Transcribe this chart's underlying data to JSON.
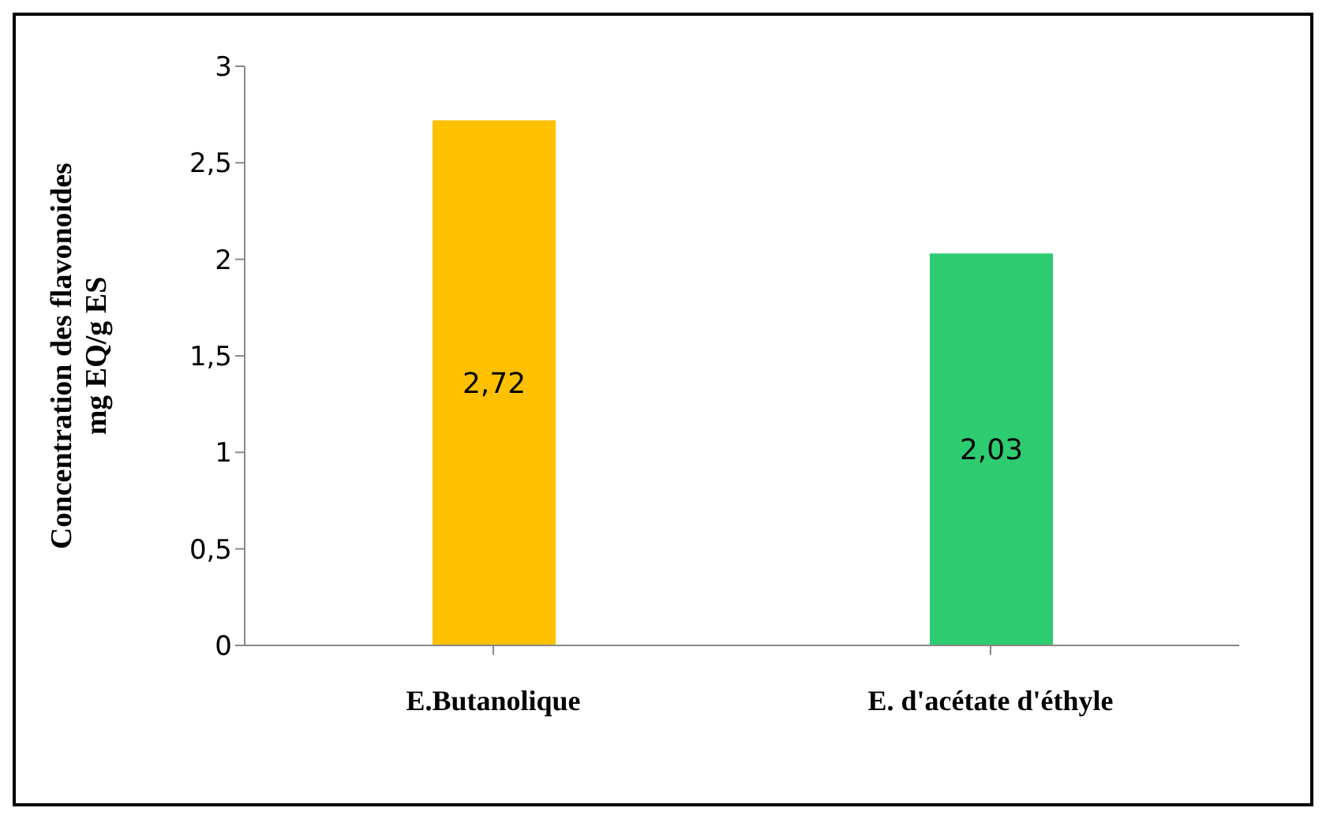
{
  "chart_data": {
    "type": "bar",
    "ylabel": "Concentration des flavonoides\nmg EQ/g ES",
    "categories": [
      "E.Butanolique",
      "E. d'acétate d'éthyle"
    ],
    "values": [
      2.72,
      2.03
    ],
    "colors": [
      "#ffc000",
      "#2ecc71"
    ],
    "value_labels": [
      "2,72",
      "2,03"
    ],
    "ylim": [
      0,
      3
    ],
    "yticks": [
      0,
      {
        "value": 0.5,
        "label": "0,5"
      },
      1,
      {
        "value": 1.5,
        "label": "1,5"
      },
      2,
      {
        "value": 2.5,
        "label": "2,5"
      },
      3
    ],
    "grid": false
  }
}
